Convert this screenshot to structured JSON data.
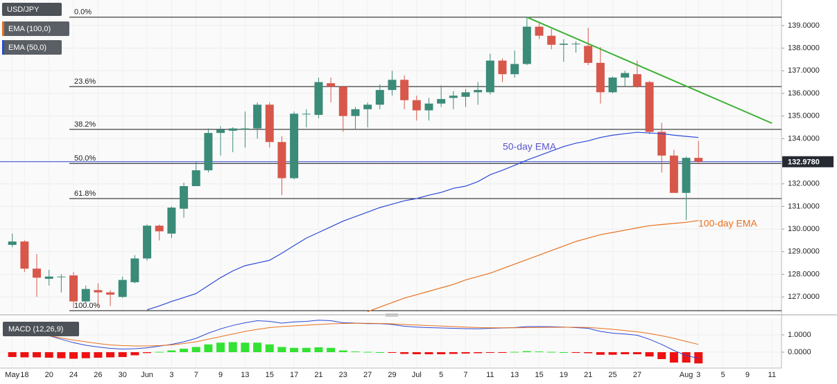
{
  "chart_data": {
    "type": "candlestick",
    "title": "USD/JPY",
    "categories": [
      "May",
      "18",
      null,
      "20",
      null,
      "24",
      null,
      "26",
      null,
      "30",
      null,
      "Jun",
      null,
      "3",
      null,
      "7",
      null,
      "9",
      null,
      "13",
      null,
      "15",
      null,
      "17",
      null,
      "21",
      null,
      "23",
      null,
      "27",
      null,
      "29",
      null,
      "Jul",
      null,
      "5",
      null,
      "7",
      null,
      "11",
      null,
      "13",
      null,
      "15",
      null,
      "19",
      null,
      "21",
      null,
      "25",
      null,
      "27",
      null,
      null,
      null,
      "Aug",
      "3",
      null,
      "5",
      null,
      "9",
      null,
      "11"
    ],
    "open": [
      129.3,
      129.45,
      128.25,
      127.8,
      127.9,
      127.95,
      126.8,
      127.3,
      127.2,
      127.0,
      127.65,
      128.7,
      130.15,
      129.8,
      130.9,
      131.9,
      132.6,
      134.25,
      134.35,
      134.4,
      134.45,
      135.5,
      133.85,
      132.25,
      135.1,
      135.05,
      136.45,
      136.3,
      135.0,
      135.3,
      135.5,
      136.15,
      136.6,
      135.7,
      135.25,
      135.55,
      135.8,
      135.85,
      136.05,
      136.05,
      137.45,
      136.85,
      137.3,
      138.95,
      138.55,
      138.15,
      138.2,
      138.1,
      137.35,
      136.05,
      136.7,
      136.85,
      136.5,
      134.3,
      133.25,
      131.6,
      133.15,
      null,
      null,
      null,
      null,
      null,
      null
    ],
    "high": [
      129.8,
      129.5,
      128.9,
      128.2,
      128.0,
      128.1,
      127.5,
      127.6,
      127.3,
      127.9,
      128.85,
      130.2,
      130.2,
      131.0,
      132.05,
      133.0,
      134.45,
      134.55,
      134.5,
      135.2,
      135.6,
      135.6,
      134.1,
      135.2,
      135.3,
      136.7,
      136.7,
      136.3,
      135.4,
      135.6,
      136.4,
      137.0,
      136.8,
      135.9,
      135.8,
      136.35,
      136.1,
      136.2,
      136.5,
      137.75,
      137.55,
      137.9,
      139.4,
      139.1,
      138.85,
      138.4,
      138.3,
      138.9,
      138.05,
      136.75,
      137.0,
      137.45,
      136.55,
      134.7,
      133.5,
      133.2,
      133.9,
      null,
      null,
      null,
      null,
      null,
      null
    ],
    "low": [
      129.2,
      128.1,
      127.0,
      127.5,
      127.2,
      126.5,
      126.7,
      126.6,
      126.6,
      126.95,
      127.6,
      128.6,
      129.5,
      129.6,
      130.5,
      131.9,
      132.5,
      133.25,
      133.4,
      133.6,
      134.0,
      133.6,
      131.5,
      132.2,
      134.5,
      134.9,
      135.6,
      134.3,
      134.4,
      134.5,
      135.3,
      135.9,
      135.3,
      134.8,
      134.8,
      135.4,
      135.3,
      135.4,
      135.5,
      135.95,
      136.5,
      136.7,
      137.25,
      138.4,
      137.95,
      137.4,
      137.8,
      137.25,
      135.55,
      136.0,
      136.3,
      136.25,
      134.2,
      132.5,
      131.6,
      130.4,
      132.9,
      null,
      null,
      null,
      null,
      null,
      null
    ],
    "close": [
      129.45,
      128.25,
      127.85,
      127.9,
      127.9,
      126.8,
      127.35,
      127.2,
      127.1,
      127.75,
      128.7,
      130.15,
      129.9,
      130.95,
      131.9,
      132.6,
      134.25,
      134.4,
      134.45,
      134.45,
      135.5,
      133.85,
      132.25,
      135.1,
      135.1,
      136.5,
      136.3,
      135.0,
      135.3,
      135.5,
      136.15,
      136.6,
      135.7,
      135.25,
      135.55,
      135.75,
      135.9,
      136.05,
      136.15,
      137.45,
      136.85,
      137.3,
      138.95,
      138.55,
      138.15,
      138.2,
      138.2,
      137.35,
      136.05,
      136.7,
      136.9,
      136.3,
      134.3,
      133.25,
      131.6,
      133.15,
      132.978,
      null,
      null,
      null,
      null,
      null,
      null
    ],
    "up_color": "#3b8b79",
    "down_color": "#d8574b",
    "series": [
      {
        "name": "EMA (100,0)",
        "color": "#e8701e",
        "values": [
          null,
          null,
          null,
          null,
          null,
          null,
          null,
          null,
          null,
          null,
          null,
          null,
          null,
          null,
          null,
          null,
          null,
          null,
          null,
          null,
          null,
          null,
          null,
          null,
          null,
          null,
          null,
          null,
          null,
          126.35,
          126.55,
          126.75,
          126.95,
          127.1,
          127.25,
          127.4,
          127.55,
          127.75,
          127.9,
          128.05,
          128.25,
          128.45,
          128.65,
          128.85,
          129.05,
          129.25,
          129.45,
          129.6,
          129.75,
          129.85,
          129.95,
          130.05,
          130.15,
          130.2,
          130.25,
          130.3,
          130.38,
          null,
          null,
          null,
          null,
          null,
          null
        ]
      },
      {
        "name": "EMA (50,0)",
        "color": "#2b49d6",
        "values": [
          null,
          null,
          null,
          null,
          null,
          null,
          null,
          null,
          null,
          null,
          null,
          126.43,
          126.6,
          126.8,
          126.97,
          127.15,
          127.5,
          127.85,
          128.15,
          128.38,
          128.5,
          128.62,
          128.93,
          129.27,
          129.6,
          129.85,
          130.1,
          130.35,
          130.55,
          130.75,
          130.95,
          131.1,
          131.25,
          131.35,
          131.5,
          131.62,
          131.8,
          131.9,
          132.1,
          132.4,
          132.6,
          132.82,
          133.05,
          133.25,
          133.45,
          133.65,
          133.8,
          133.9,
          134.05,
          134.15,
          134.22,
          134.28,
          134.25,
          134.22,
          134.15,
          134.1,
          134.05,
          null,
          null,
          null,
          null,
          null,
          null
        ]
      }
    ],
    "ylim": [
      126.3,
      140.13
    ],
    "yticks": [
      {
        "value": 127,
        "label": "127.0000"
      },
      {
        "value": 128,
        "label": "128.0000"
      },
      {
        "value": 129,
        "label": "129.0000"
      },
      {
        "value": 130,
        "label": "130.0000"
      },
      {
        "value": 131,
        "label": "131.0000"
      },
      {
        "value": 132,
        "label": "132.0000"
      },
      {
        "value": 133,
        "label": "133.0000"
      },
      {
        "value": 134,
        "label": "134.0000"
      },
      {
        "value": 135,
        "label": "135.0000"
      },
      {
        "value": 136,
        "label": "136.0000"
      },
      {
        "value": 137,
        "label": "137.0000"
      },
      {
        "value": 138,
        "label": "138.0000"
      },
      {
        "value": 139,
        "label": "139.0000"
      }
    ],
    "grid": true,
    "fib_levels": [
      {
        "label": "0.0%",
        "value": 139.37
      },
      {
        "label": "23.6%",
        "value": 136.3
      },
      {
        "label": "38.2%",
        "value": 134.41
      },
      {
        "label": "50.0%",
        "value": 132.9
      },
      {
        "label": "61.8%",
        "value": 131.35
      },
      {
        "label": "100.0%",
        "value": 126.39
      }
    ],
    "trendline": {
      "color": "#3cb034",
      "x": [
        42,
        62
      ],
      "y": [
        139.37,
        134.68
      ]
    },
    "last_price": {
      "value": 132.978,
      "label": "132.9780",
      "color": "#2b49d6"
    },
    "annotations": [
      {
        "text": "50-day EMA",
        "color": "#5a55d0"
      },
      {
        "text": "100-day EMA",
        "color": "#e8701e"
      }
    ],
    "macd": {
      "name": "MACD (12,26,9)",
      "ylim": [
        -0.92,
        1.88
      ],
      "yticks": [
        {
          "value": 0,
          "label": "0.0000"
        },
        {
          "value": 1,
          "label": "1.0000"
        }
      ],
      "pos_color": "#33e233",
      "neg_color": "#ee1111",
      "histogram": [
        -0.28,
        -0.3,
        -0.3,
        -0.32,
        -0.35,
        -0.38,
        -0.35,
        -0.32,
        -0.3,
        -0.28,
        -0.18,
        -0.05,
        0.02,
        0.1,
        0.2,
        0.3,
        0.45,
        0.55,
        0.58,
        0.55,
        0.55,
        0.45,
        0.3,
        0.25,
        0.25,
        0.28,
        0.25,
        0.1,
        0.04,
        0.02,
        0.0,
        -0.03,
        -0.1,
        -0.12,
        -0.12,
        -0.12,
        -0.1,
        -0.08,
        -0.06,
        -0.02,
        -0.02,
        0.02,
        0.06,
        0.04,
        0.02,
        0.0,
        -0.02,
        -0.06,
        -0.15,
        -0.15,
        -0.12,
        -0.12,
        -0.25,
        -0.4,
        -0.6,
        -0.6,
        -0.65,
        null,
        null,
        null,
        null,
        null,
        null
      ],
      "macd_line": {
        "color": "#2b49d6",
        "values": [
          1.65,
          1.45,
          1.2,
          0.95,
          0.75,
          0.55,
          0.4,
          0.3,
          0.22,
          0.18,
          0.2,
          0.25,
          0.35,
          0.45,
          0.6,
          0.8,
          1.1,
          1.35,
          1.55,
          1.7,
          1.82,
          1.78,
          1.68,
          1.75,
          1.78,
          1.85,
          1.82,
          1.7,
          1.68,
          1.65,
          1.65,
          1.6,
          1.5,
          1.45,
          1.42,
          1.4,
          1.38,
          1.36,
          1.35,
          1.38,
          1.4,
          1.42,
          1.48,
          1.48,
          1.47,
          1.45,
          1.42,
          1.38,
          1.2,
          1.1,
          1.05,
          0.98,
          0.75,
          0.45,
          0.1,
          -0.2,
          -0.35,
          null,
          null,
          null,
          null,
          null,
          null
        ]
      },
      "signal_line": {
        "color": "#e8701e",
        "values": [
          1.3,
          1.2,
          1.08,
          0.95,
          0.82,
          0.7,
          0.6,
          0.5,
          0.42,
          0.38,
          0.36,
          0.36,
          0.38,
          0.42,
          0.5,
          0.6,
          0.75,
          0.9,
          1.05,
          1.2,
          1.32,
          1.42,
          1.48,
          1.52,
          1.56,
          1.6,
          1.64,
          1.66,
          1.67,
          1.67,
          1.66,
          1.64,
          1.6,
          1.57,
          1.54,
          1.51,
          1.48,
          1.45,
          1.42,
          1.41,
          1.41,
          1.41,
          1.42,
          1.43,
          1.44,
          1.44,
          1.44,
          1.43,
          1.38,
          1.32,
          1.25,
          1.18,
          1.08,
          0.95,
          0.8,
          0.62,
          0.45,
          null,
          null,
          null,
          null,
          null,
          null
        ]
      }
    }
  }
}
